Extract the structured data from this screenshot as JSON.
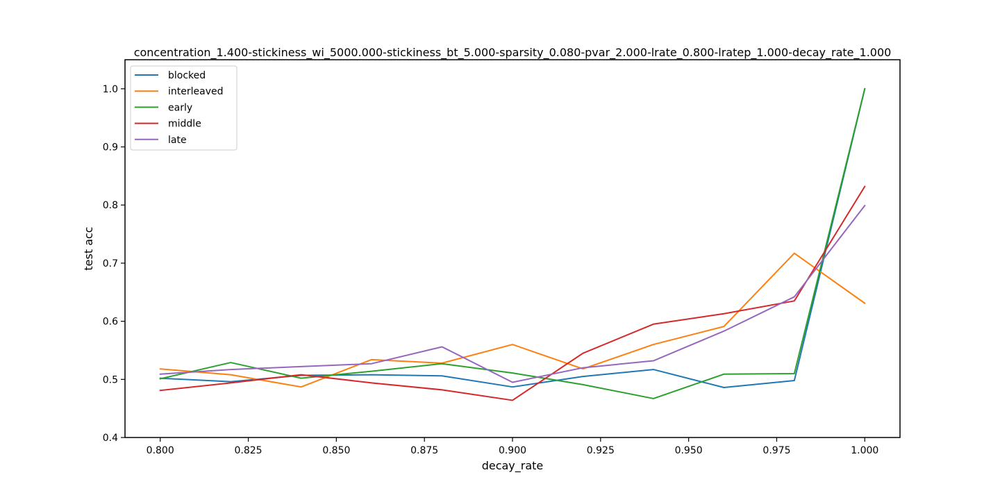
{
  "chart_data": {
    "type": "line",
    "title": "concentration_1.400-stickiness_wi_5000.000-stickiness_bt_5.000-sparsity_0.080-pvar_2.000-lrate_0.800-lratep_1.000-decay_rate_1.000",
    "xlabel": "decay_rate",
    "ylabel": "test acc",
    "xlim": [
      0.79,
      1.01
    ],
    "ylim": [
      0.4,
      1.05
    ],
    "x_ticks": [
      0.8,
      0.825,
      0.85,
      0.875,
      0.9,
      0.925,
      0.95,
      0.975,
      1.0
    ],
    "x_tick_labels": [
      "0.800",
      "0.825",
      "0.850",
      "0.875",
      "0.900",
      "0.925",
      "0.950",
      "0.975",
      "1.000"
    ],
    "y_ticks": [
      0.4,
      0.5,
      0.6,
      0.7,
      0.8,
      0.9,
      1.0
    ],
    "y_tick_labels": [
      "0.4",
      "0.5",
      "0.6",
      "0.7",
      "0.8",
      "0.9",
      "1.0"
    ],
    "grid": false,
    "legend_position": "upper-left",
    "x": [
      0.8,
      0.82,
      0.84,
      0.86,
      0.88,
      0.9,
      0.92,
      0.94,
      0.96,
      0.98,
      1.0
    ],
    "series": [
      {
        "name": "blocked",
        "color": "#1f77b4",
        "values": [
          0.502,
          0.496,
          0.507,
          0.508,
          0.506,
          0.487,
          0.505,
          0.517,
          0.486,
          0.498,
          1.0
        ]
      },
      {
        "name": "interleaved",
        "color": "#ff7f0e",
        "values": [
          0.518,
          0.508,
          0.487,
          0.534,
          0.528,
          0.56,
          0.518,
          0.56,
          0.591,
          0.717,
          0.631
        ]
      },
      {
        "name": "early",
        "color": "#2ca02c",
        "values": [
          0.501,
          0.529,
          0.502,
          0.514,
          0.527,
          0.511,
          0.491,
          0.467,
          0.509,
          0.51,
          1.0
        ]
      },
      {
        "name": "middle",
        "color": "#d62728",
        "values": [
          0.481,
          0.494,
          0.508,
          0.494,
          0.482,
          0.464,
          0.545,
          0.595,
          0.613,
          0.635,
          0.832
        ]
      },
      {
        "name": "late",
        "color": "#9467bd",
        "values": [
          0.509,
          0.517,
          0.522,
          0.527,
          0.556,
          0.495,
          0.52,
          0.532,
          0.583,
          0.642,
          0.799
        ]
      }
    ]
  }
}
